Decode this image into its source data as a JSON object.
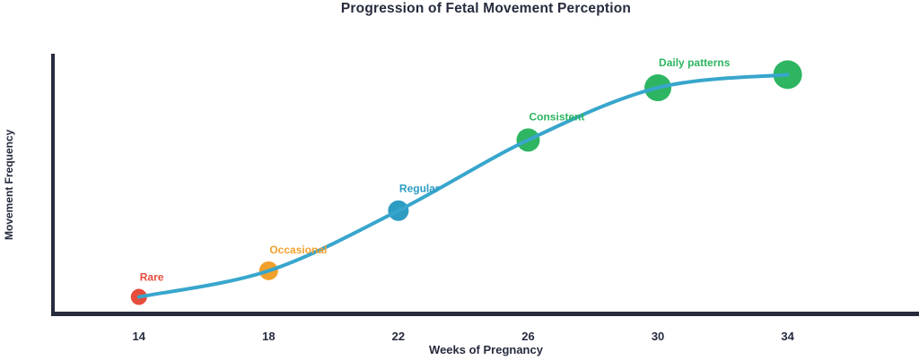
{
  "chart_data": {
    "type": "line",
    "title": "Progression of Fetal Movement Perception",
    "xlabel": "Weeks of Pregnancy",
    "ylabel": "Movement Frequency",
    "x_ticks": [
      14,
      18,
      22,
      26,
      30,
      34
    ],
    "xlim": [
      11.35,
      38.05
    ],
    "ylim": [
      0.3,
      10.3
    ],
    "y_ticks_shown": false,
    "grid": false,
    "legend": false,
    "background_color": "#ffffff",
    "line_color": "#38a6cc",
    "axis_color": "#262b3d",
    "points": [
      {
        "x": 14,
        "y": 1.0,
        "label": "Rare",
        "color": "#e74c3c",
        "radius": 9
      },
      {
        "x": 18,
        "y": 2.0,
        "label": "Occasional",
        "color": "#f2a12c",
        "radius": 10.5
      },
      {
        "x": 22,
        "y": 4.3,
        "label": "Regular",
        "color": "#2d9cc3",
        "radius": 11.5
      },
      {
        "x": 26,
        "y": 7.0,
        "label": "Consistent",
        "color": "#2db562",
        "radius": 13
      },
      {
        "x": 30,
        "y": 9.0,
        "label": "Daily patterns",
        "color": "#2db562",
        "radius": 15
      },
      {
        "x": 34,
        "y": 9.5,
        "label": "",
        "color": "#2db562",
        "radius": 16
      }
    ]
  }
}
